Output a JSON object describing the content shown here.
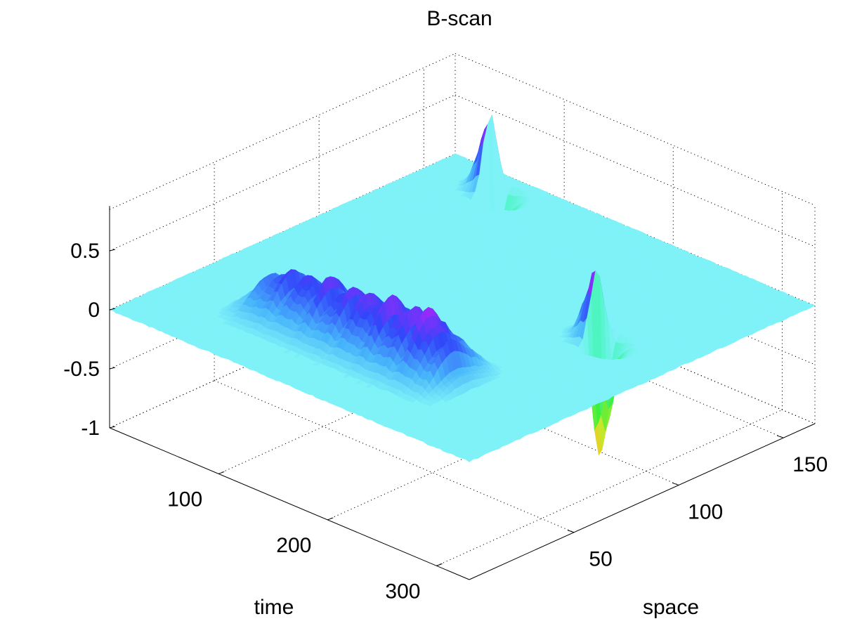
{
  "chart_data": {
    "type": "surface",
    "title": "B-scan",
    "xlabel": "time",
    "ylabel": "space",
    "zlabel": "",
    "x_ticks": [
      100,
      200,
      300
    ],
    "y_ticks": [
      50,
      100,
      150
    ],
    "z_ticks": [
      0.5,
      0,
      -0.5,
      -1
    ],
    "x_tick_labels": [
      "100",
      "200",
      "300"
    ],
    "y_tick_labels": [
      "50",
      "100",
      "150"
    ],
    "z_tick_labels": [
      "0.5",
      "0",
      "-0.5",
      "-1"
    ],
    "xlim": [
      0,
      330
    ],
    "ylim": [
      0,
      165
    ],
    "zlim": [
      -1,
      0.85
    ],
    "grid": true,
    "colormap": "hsv",
    "base_color": "#7ff2f8",
    "features": [
      {
        "kind": "ridge",
        "x_range": [
          60,
          250
        ],
        "y_center": 38,
        "height": 0.55
      },
      {
        "kind": "dipole",
        "x_center": 265,
        "y_center": 95,
        "peak": 0.6,
        "trough": -1.0
      },
      {
        "kind": "dipole",
        "x_center": 60,
        "y_center": 152,
        "peak": 0.72,
        "trough": -0.7
      }
    ]
  }
}
